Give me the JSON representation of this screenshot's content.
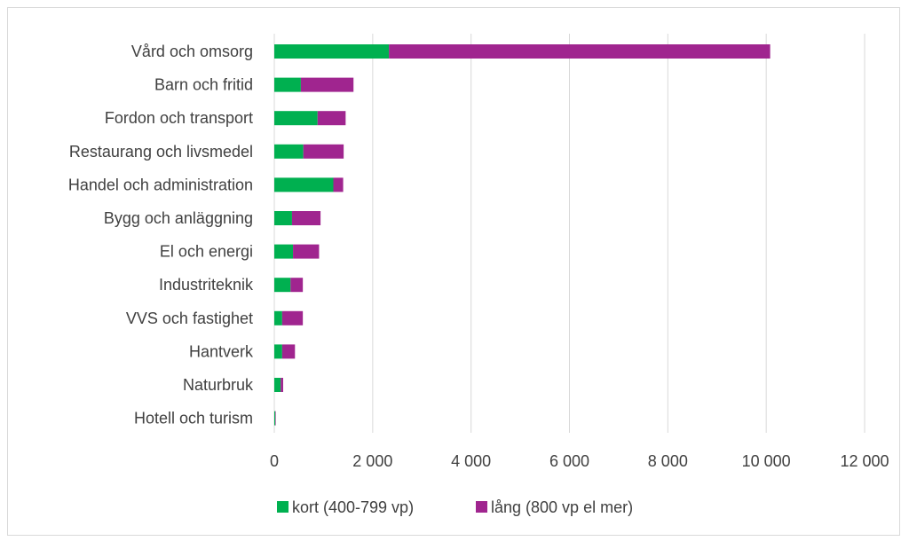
{
  "chart_data": {
    "type": "bar",
    "orientation": "horizontal",
    "stacked": true,
    "title": "",
    "xlabel": "",
    "ylabel": "",
    "categories": [
      "Vård och omsorg",
      "Barn och fritid",
      "Fordon och transport",
      "Restaurang och livsmedel",
      "Handel och administration",
      "Bygg och anläggning",
      "El och energi",
      "Industriteknik",
      "VVS och fastighet",
      "Hantverk",
      "Naturbruk",
      "Hotell och turism"
    ],
    "series": [
      {
        "name": "kort (400-799 vp)",
        "color": "#00b050",
        "values": [
          2330,
          540,
          880,
          590,
          1200,
          360,
          380,
          330,
          160,
          160,
          130,
          20
        ]
      },
      {
        "name": "lång (800 vp el mer)",
        "color": "#a0258f",
        "values": [
          7750,
          1070,
          570,
          820,
          200,
          580,
          530,
          250,
          420,
          260,
          50,
          10
        ]
      }
    ],
    "xlim": [
      0,
      12000
    ],
    "xticks": [
      0,
      2000,
      4000,
      6000,
      8000,
      10000,
      12000
    ],
    "xtick_labels": [
      "0",
      "2 000",
      "4 000",
      "6 000",
      "8 000",
      "10 000",
      "12 000"
    ],
    "grid": true,
    "gridline_color": "#d9d9d9",
    "legend_position": "bottom"
  }
}
